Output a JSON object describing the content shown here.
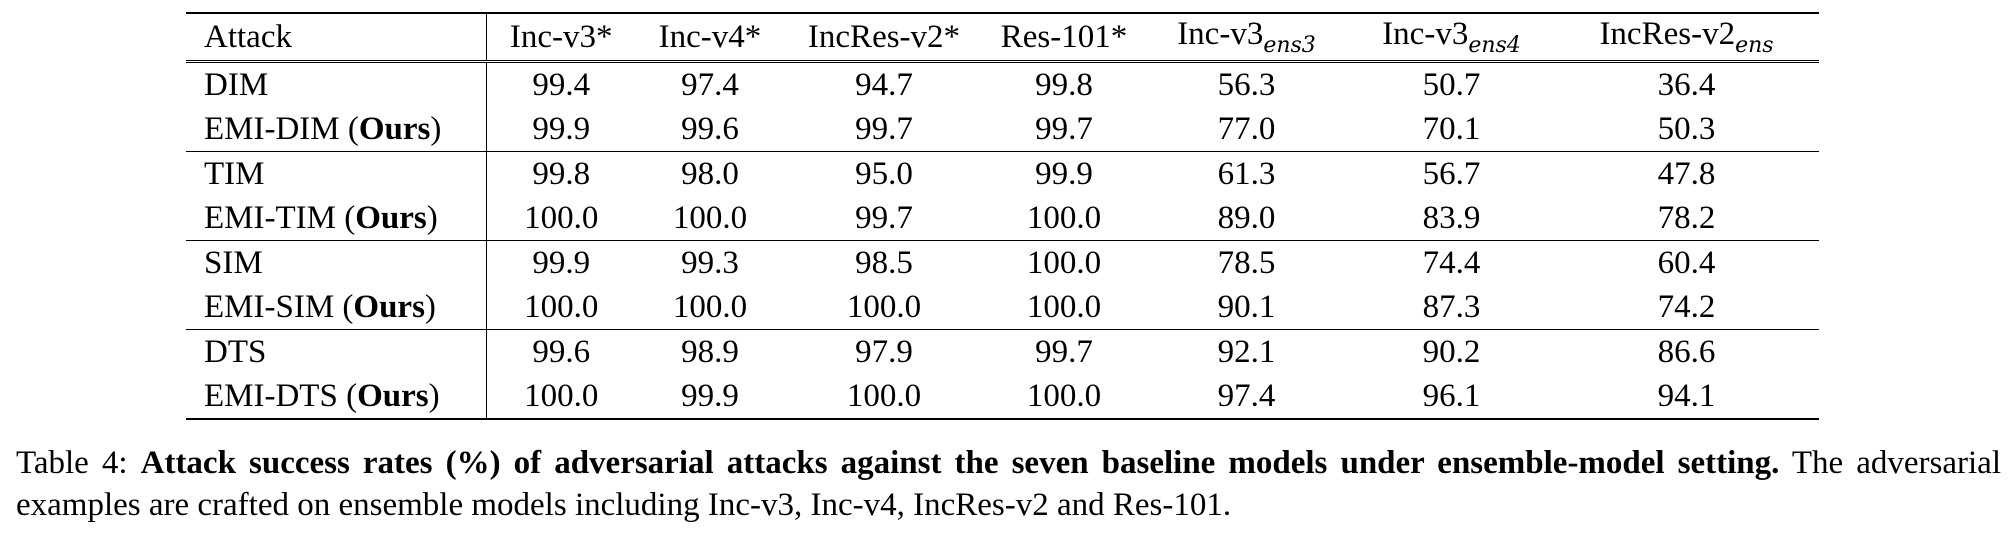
{
  "table": {
    "headers": {
      "attack": "Attack",
      "cols": [
        {
          "label": "Inc-v3*",
          "sub": ""
        },
        {
          "label": "Inc-v4*",
          "sub": ""
        },
        {
          "label": "IncRes-v2*",
          "sub": ""
        },
        {
          "label": "Res-101*",
          "sub": ""
        },
        {
          "label": "Inc-v3",
          "sub": "ens3"
        },
        {
          "label": "Inc-v3",
          "sub": "ens4"
        },
        {
          "label": "IncRes-v2",
          "sub": "ens"
        }
      ]
    },
    "rows": [
      {
        "name": "DIM",
        "ours": "",
        "values": [
          "99.4",
          "97.4",
          "94.7",
          "99.8",
          "56.3",
          "50.7",
          "36.4"
        ],
        "bold": [
          false,
          false,
          false,
          true,
          false,
          false,
          false
        ]
      },
      {
        "name": "EMI-DIM (",
        "ours": "Ours",
        "values": [
          "99.9",
          "99.6",
          "99.7",
          "99.7",
          "77.0",
          "70.1",
          "50.3"
        ],
        "bold": [
          true,
          true,
          true,
          false,
          true,
          true,
          true
        ]
      },
      {
        "name": "TIM",
        "ours": "",
        "values": [
          "99.8",
          "98.0",
          "95.0",
          "99.9",
          "61.3",
          "56.7",
          "47.8"
        ],
        "bold": [
          false,
          false,
          false,
          false,
          false,
          false,
          false
        ]
      },
      {
        "name": "EMI-TIM (",
        "ours": "Ours",
        "values": [
          "100.0",
          "100.0",
          "99.7",
          "100.0",
          "89.0",
          "83.9",
          "78.2"
        ],
        "bold": [
          true,
          true,
          true,
          true,
          true,
          true,
          true
        ]
      },
      {
        "name": "SIM",
        "ours": "",
        "values": [
          "99.9",
          "99.3",
          "98.5",
          "100.0",
          "78.5",
          "74.4",
          "60.4"
        ],
        "bold": [
          false,
          false,
          false,
          true,
          false,
          false,
          false
        ]
      },
      {
        "name": "EMI-SIM (",
        "ours": "Ours",
        "values": [
          "100.0",
          "100.0",
          "100.0",
          "100.0",
          "90.1",
          "87.3",
          "74.2"
        ],
        "bold": [
          true,
          true,
          true,
          true,
          true,
          true,
          true
        ]
      },
      {
        "name": "DTS",
        "ours": "",
        "values": [
          "99.6",
          "98.9",
          "97.9",
          "99.7",
          "92.1",
          "90.2",
          "86.6"
        ],
        "bold": [
          false,
          false,
          false,
          false,
          false,
          false,
          false
        ]
      },
      {
        "name": "EMI-DTS (",
        "ours": "Ours",
        "values": [
          "100.0",
          "99.9",
          "100.0",
          "100.0",
          "97.4",
          "96.1",
          "94.1"
        ],
        "bold": [
          true,
          true,
          true,
          true,
          true,
          true,
          true
        ]
      }
    ]
  },
  "caption": {
    "label": "Table 4: ",
    "bold_text": "Attack success rates (%) of adversarial attacks against the seven baseline models under ensemble-model setting.",
    "rest": " The adversarial examples are crafted on ensemble models including Inc-v3, Inc-v4, IncRes-v2 and Res-101."
  }
}
